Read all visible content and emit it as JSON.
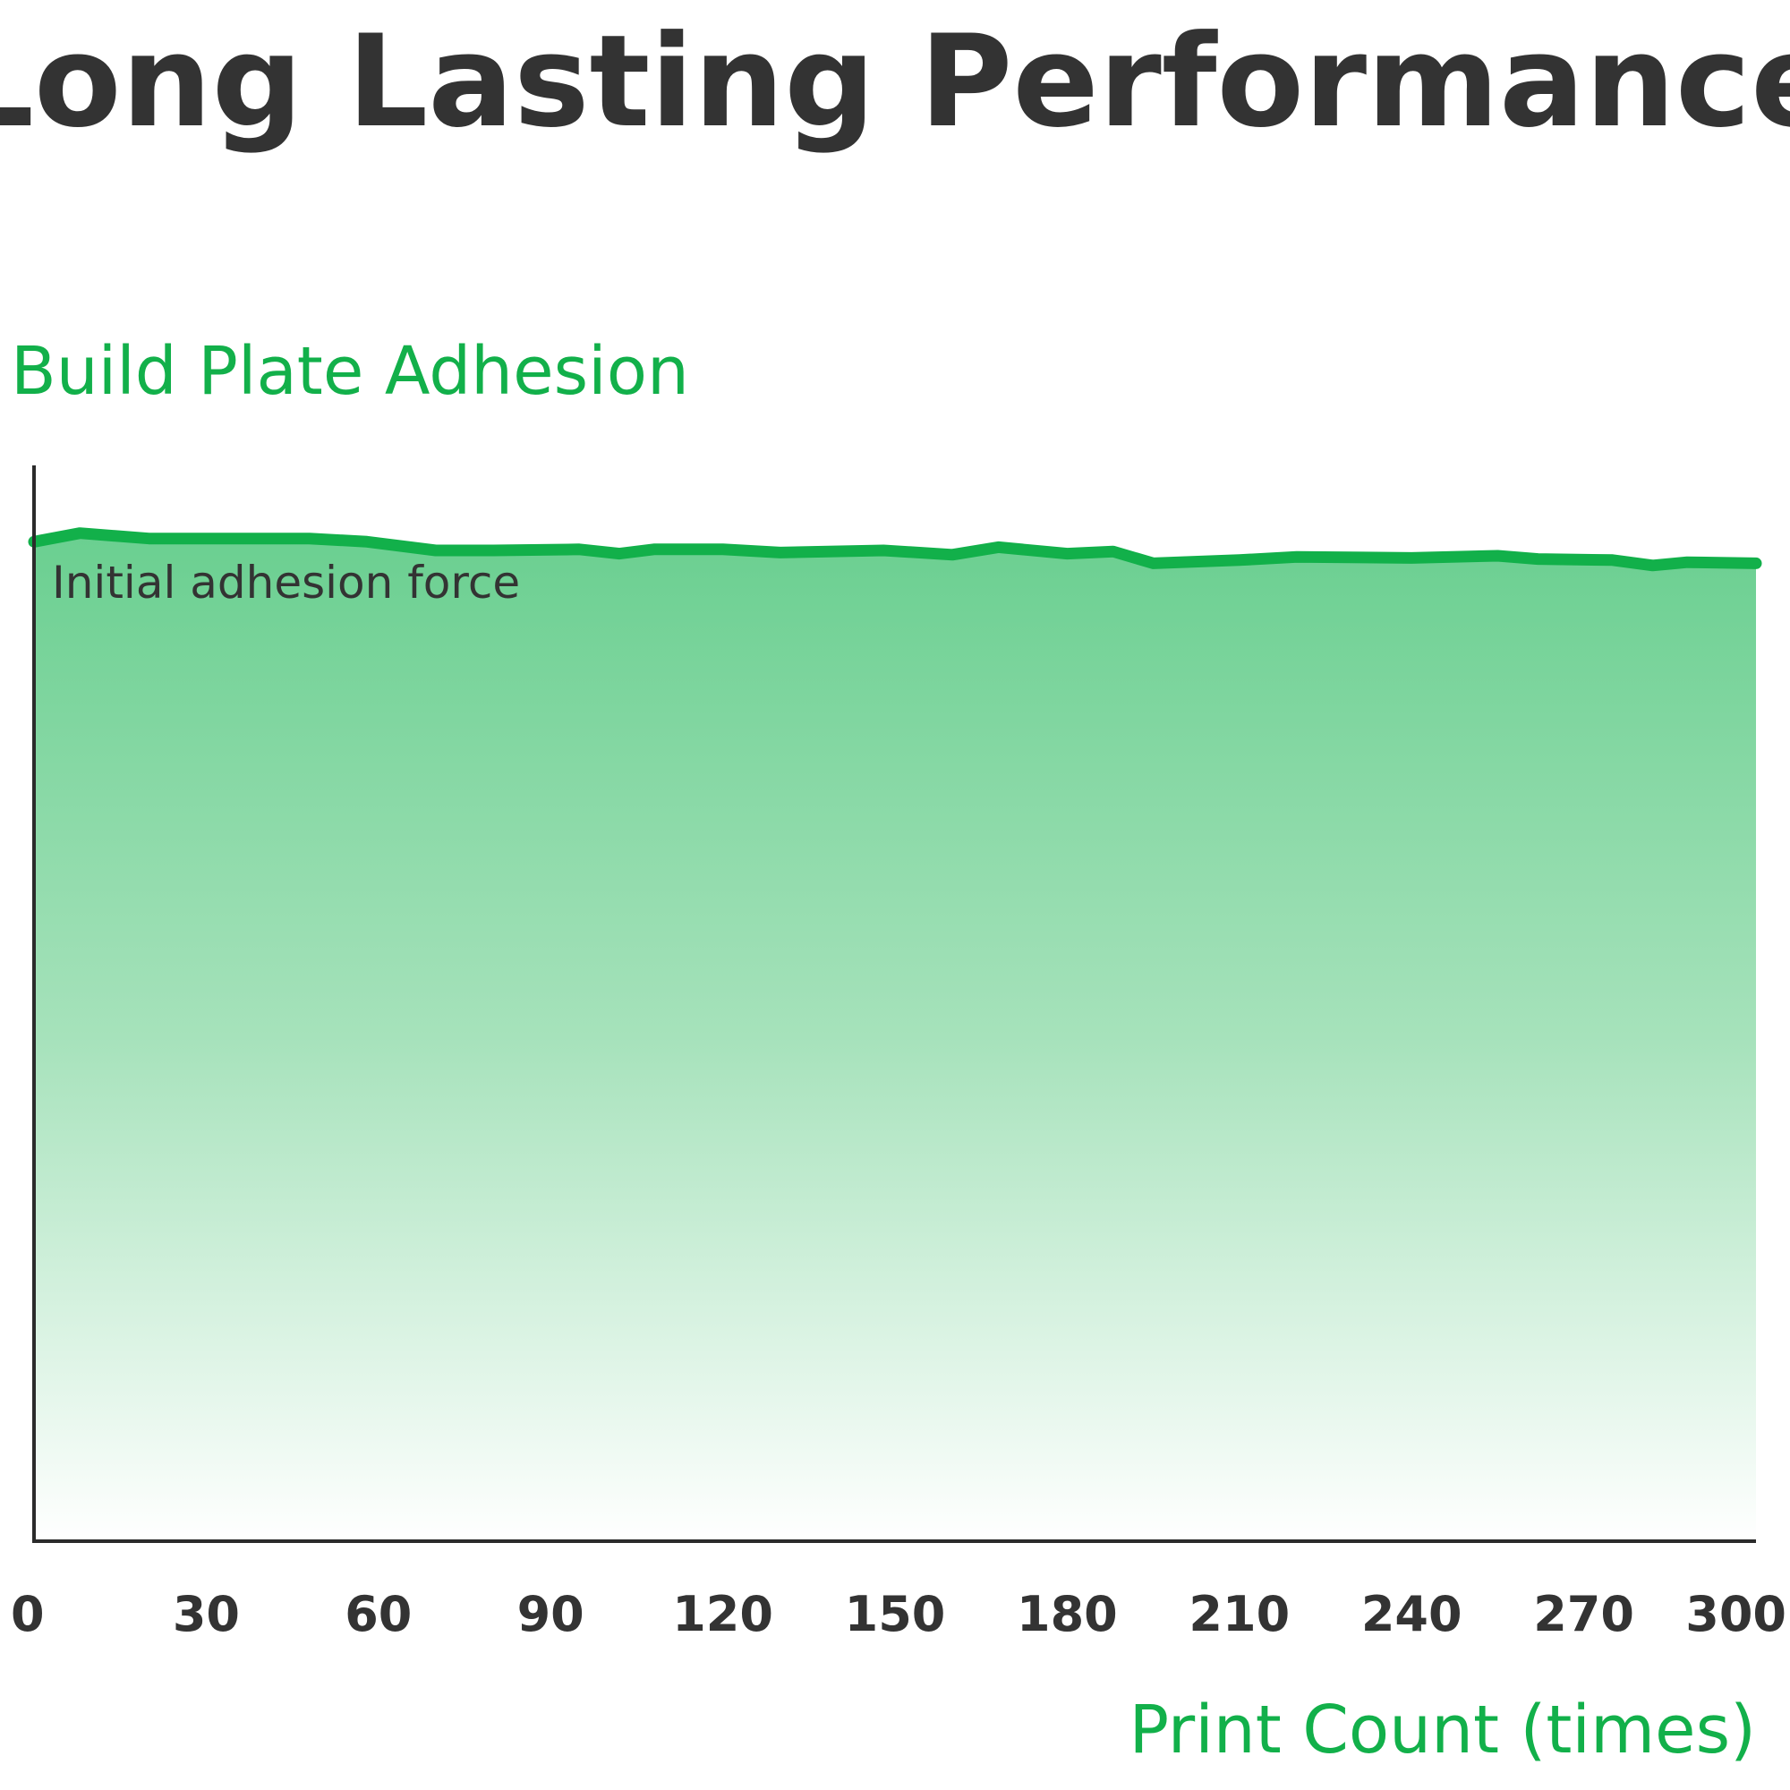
{
  "chart_data": {
    "type": "area",
    "title": "Long Lasting Performance",
    "ylabel": "Build Plate Adhesion",
    "xlabel": "Print Count (times)",
    "annotation": "Initial adhesion force",
    "x_ticks": [
      "0",
      "30",
      "60",
      "90",
      "120",
      "150",
      "180",
      "210",
      "240",
      "270",
      "300"
    ],
    "xlim": [
      0,
      300
    ],
    "ylim": [
      0,
      100
    ],
    "grid": false,
    "legend": "none",
    "series": [
      {
        "x": [
          0,
          8,
          20,
          48,
          58,
          70,
          80,
          95,
          102,
          108,
          120,
          130,
          148,
          160,
          168,
          180,
          188,
          195,
          210,
          220,
          240,
          255,
          262,
          275,
          282,
          288,
          300
        ],
        "values": [
          92.9,
          93.7,
          93.2,
          93.2,
          92.9,
          92.1,
          92.1,
          92.2,
          91.8,
          92.2,
          92.2,
          91.9,
          92.1,
          91.7,
          92.4,
          91.8,
          92.0,
          90.9,
          91.2,
          91.5,
          91.4,
          91.6,
          91.3,
          91.2,
          90.7,
          91.0,
          90.9
        ]
      }
    ],
    "colors": {
      "line": "#12b04a",
      "fill_top": "#6acf90",
      "fill_bottom": "#ffffff",
      "axis": "#2b2b2b",
      "title": "#333333",
      "label": "#12b04a"
    }
  }
}
